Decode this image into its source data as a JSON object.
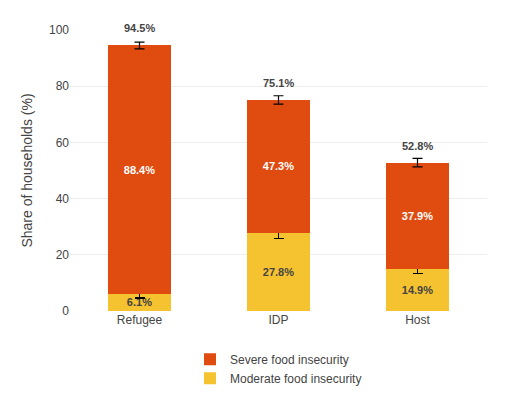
{
  "chart_data": {
    "type": "bar",
    "stacked": true,
    "categories": [
      "Refugee",
      "IDP",
      "Host"
    ],
    "series": [
      {
        "name": "Moderate food insecurity",
        "color": "#F5C230",
        "values": [
          6.1,
          27.8,
          14.9
        ],
        "value_labels": [
          "6.1%",
          "27.8%",
          "14.9%"
        ],
        "error": [
          1.5,
          2.0,
          1.5
        ]
      },
      {
        "name": "Severe food insecurity",
        "color": "#E04B10",
        "values": [
          88.4,
          47.3,
          37.9
        ],
        "value_labels": [
          "88.4%",
          "47.3%",
          "37.9%"
        ]
      }
    ],
    "totals": {
      "values": [
        94.5,
        75.1,
        52.8
      ],
      "value_labels": [
        "94.5%",
        "75.1%",
        "52.8%"
      ],
      "error": [
        1.2,
        1.5,
        1.5
      ]
    },
    "ylabel": "Share of households (%)",
    "ylim": [
      0,
      100
    ],
    "yticks": [
      0,
      20,
      40,
      60,
      80,
      100
    ],
    "grid": true,
    "data_labels": true,
    "legend": "bottom"
  }
}
